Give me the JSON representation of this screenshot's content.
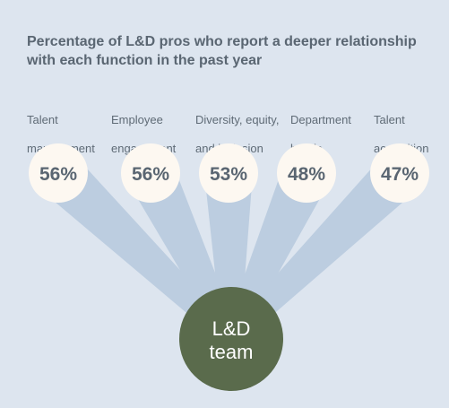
{
  "title_lines": [
    "Percentage of L&D pros who report a deeper relationship",
    "with each function in the past year"
  ],
  "hub": {
    "lines": [
      "L&D",
      "team"
    ]
  },
  "colors": {
    "background": "#dde5ef",
    "beam": "#bccde0",
    "bubble": "#fdf8f1",
    "hub": "#5a6b4c",
    "text": "#5f6b76",
    "value_text": "#5a6672",
    "hub_text": "#ffffff"
  },
  "chart_data": {
    "type": "bar",
    "categories": [
      "Talent management",
      "Employee engagement",
      "Diversity, equity, and inclusion",
      "Department heads",
      "Talent acquisition"
    ],
    "category_label_lines": [
      [
        "Talent",
        "management"
      ],
      [
        "Employee",
        "engagement"
      ],
      [
        "Diversity, equity,",
        "and inclusion"
      ],
      [
        "Department",
        "heads"
      ],
      [
        "Talent",
        "acquisition"
      ]
    ],
    "values": [
      56,
      56,
      53,
      48,
      47
    ],
    "value_labels": [
      "56%",
      "56%",
      "53%",
      "48%",
      "47%"
    ],
    "title": "Percentage of L&D pros who report a deeper relationship with each function in the past year",
    "unit": "%"
  }
}
